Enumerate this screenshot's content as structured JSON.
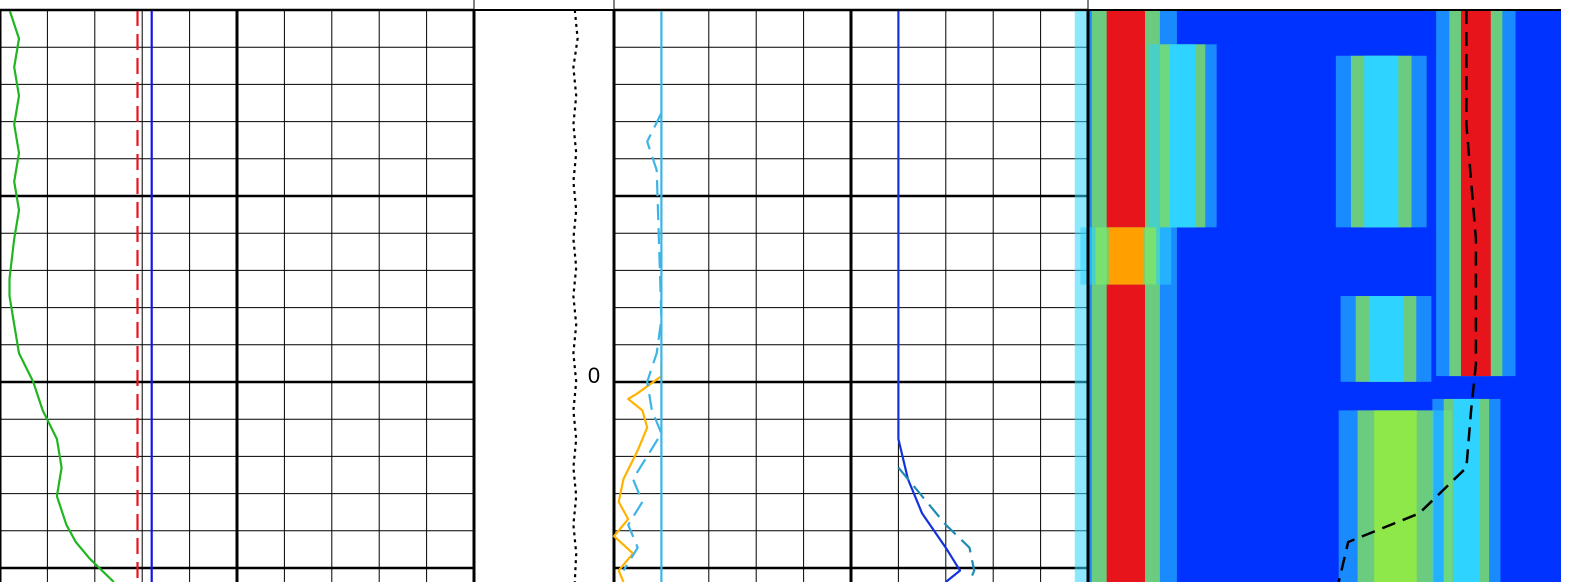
{
  "depth_track": {
    "label": "0"
  },
  "colors": {
    "grid_fine": "#000000",
    "gr_curve": "#22b522",
    "res_red_dashed": "#e8141c",
    "res_blue": "#1414e6",
    "caliper_dotted": "#000000",
    "orange_curve": "#ffb300",
    "cyan_curve": "#3cb4e6",
    "blue_curve": "#1432dc",
    "teal_dashed": "#1e8cb4",
    "heatmap_background": "#0033ff",
    "heatmap_trace_dashed": "#000000"
  },
  "chart_data": {
    "type": "line",
    "tracks": [
      {
        "name": "",
        "grid": true,
        "series": [
          {
            "name": "",
            "style": "solid",
            "color": "#22b522",
            "points": [
              [
                0.02,
                0
              ],
              [
                0.04,
                0.05
              ],
              [
                0.03,
                0.1
              ],
              [
                0.04,
                0.15
              ],
              [
                0.03,
                0.2
              ],
              [
                0.04,
                0.25
              ],
              [
                0.03,
                0.3
              ],
              [
                0.04,
                0.35
              ],
              [
                0.03,
                0.4
              ],
              [
                0.02,
                0.47
              ],
              [
                0.02,
                0.5
              ],
              [
                0.03,
                0.55
              ],
              [
                0.04,
                0.6
              ],
              [
                0.07,
                0.65
              ],
              [
                0.09,
                0.7
              ],
              [
                0.12,
                0.75
              ],
              [
                0.13,
                0.8
              ],
              [
                0.12,
                0.85
              ],
              [
                0.14,
                0.9
              ],
              [
                0.16,
                0.93
              ],
              [
                0.19,
                0.96
              ],
              [
                0.24,
                1.0
              ]
            ]
          },
          {
            "name": "",
            "style": "dashed",
            "color": "#e8141c",
            "points": [
              [
                0.29,
                0
              ],
              [
                0.29,
                0.2
              ],
              [
                0.29,
                0.4
              ],
              [
                0.29,
                0.6
              ],
              [
                0.29,
                0.8
              ],
              [
                0.29,
                1.0
              ]
            ]
          },
          {
            "name": "",
            "style": "solid",
            "color": "#1414e6",
            "points": [
              [
                0.32,
                0
              ],
              [
                0.32,
                0.25
              ],
              [
                0.32,
                0.5
              ],
              [
                0.32,
                0.75
              ],
              [
                0.32,
                1.0
              ]
            ]
          }
        ]
      },
      {
        "name": "",
        "grid": false,
        "series": [
          {
            "name": "",
            "style": "dotted",
            "color": "#000000",
            "points": [
              [
                0.72,
                0
              ],
              [
                0.74,
                0.05
              ],
              [
                0.71,
                0.1
              ],
              [
                0.73,
                0.15
              ],
              [
                0.71,
                0.2
              ],
              [
                0.73,
                0.25
              ],
              [
                0.71,
                0.3
              ],
              [
                0.73,
                0.35
              ],
              [
                0.71,
                0.4
              ],
              [
                0.73,
                0.45
              ],
              [
                0.71,
                0.5
              ],
              [
                0.73,
                0.55
              ],
              [
                0.71,
                0.6
              ],
              [
                0.73,
                0.65
              ],
              [
                0.71,
                0.7
              ],
              [
                0.73,
                0.75
              ],
              [
                0.71,
                0.8
              ],
              [
                0.73,
                0.85
              ],
              [
                0.71,
                0.9
              ],
              [
                0.73,
                0.95
              ],
              [
                0.72,
                1.0
              ]
            ]
          }
        ]
      },
      {
        "name": "",
        "grid": true,
        "series": [
          {
            "name": "",
            "style": "solid",
            "color": "#ffb300",
            "points": [
              [
                0.1,
                0.62
              ],
              [
                0.1,
                0.64
              ],
              [
                0.05,
                0.67
              ],
              [
                0.03,
                0.68
              ],
              [
                0.06,
                0.7
              ],
              [
                0.07,
                0.73
              ],
              [
                0.05,
                0.77
              ],
              [
                0.02,
                0.82
              ],
              [
                0.01,
                0.86
              ],
              [
                0.03,
                0.89
              ],
              [
                0.0,
                0.92
              ],
              [
                0.04,
                0.95
              ],
              [
                0.01,
                0.98
              ],
              [
                0.02,
                1.0
              ]
            ]
          },
          {
            "name": "",
            "style": "dashed",
            "color": "#3cb4e6",
            "points": [
              [
                0.1,
                0.18
              ],
              [
                0.07,
                0.23
              ],
              [
                0.09,
                0.28
              ],
              [
                0.1,
                0.54
              ],
              [
                0.09,
                0.6
              ],
              [
                0.07,
                0.65
              ],
              [
                0.08,
                0.7
              ],
              [
                0.1,
                0.74
              ],
              [
                0.07,
                0.78
              ],
              [
                0.04,
                0.82
              ],
              [
                0.06,
                0.86
              ],
              [
                0.03,
                0.9
              ],
              [
                0.05,
                0.94
              ],
              [
                0.02,
                0.98
              ]
            ]
          },
          {
            "name": "",
            "style": "solid",
            "color": "#3cb4e6",
            "points": [
              [
                0.1,
                0
              ],
              [
                0.1,
                0.2
              ],
              [
                0.1,
                0.4
              ],
              [
                0.1,
                0.6
              ],
              [
                0.1,
                0.8
              ],
              [
                0.1,
                1.0
              ]
            ]
          },
          {
            "name": "",
            "style": "solid",
            "color": "#1432dc",
            "points": [
              [
                0.6,
                0
              ],
              [
                0.6,
                0.2
              ],
              [
                0.6,
                0.4
              ],
              [
                0.6,
                0.6
              ],
              [
                0.6,
                0.75
              ],
              [
                0.62,
                0.82
              ],
              [
                0.65,
                0.88
              ],
              [
                0.7,
                0.94
              ],
              [
                0.73,
                0.98
              ],
              [
                0.7,
                1.0
              ]
            ]
          },
          {
            "name": "",
            "style": "dashed",
            "color": "#1e8cb4",
            "points": [
              [
                0.6,
                0.8
              ],
              [
                0.65,
                0.85
              ],
              [
                0.7,
                0.9
              ],
              [
                0.75,
                0.94
              ],
              [
                0.76,
                0.98
              ],
              [
                0.75,
                1.0
              ]
            ]
          }
        ]
      },
      {
        "name": "",
        "type": "heatmap",
        "grid": false,
        "bands": [
          {
            "center": 0.08,
            "width": 0.09,
            "from": 0.0,
            "to": 1.0,
            "color": "#e8141c"
          },
          {
            "center": 0.2,
            "width": 0.06,
            "from": 0.06,
            "to": 0.38,
            "color": "#2ed3ff"
          },
          {
            "center": 0.62,
            "width": 0.08,
            "from": 0.08,
            "to": 0.38,
            "color": "#2ed3ff"
          },
          {
            "center": 0.63,
            "width": 0.08,
            "from": 0.5,
            "to": 0.65,
            "color": "#2ed3ff"
          },
          {
            "center": 0.65,
            "width": 0.1,
            "from": 0.7,
            "to": 1.0,
            "color": "#8ee84a"
          },
          {
            "center": 0.82,
            "width": 0.07,
            "from": 0.0,
            "to": 0.64,
            "color": "#e8141c"
          },
          {
            "center": 0.8,
            "width": 0.06,
            "from": 0.68,
            "to": 1.0,
            "color": "#2ed3ff"
          },
          {
            "center": 0.08,
            "width": 0.08,
            "from": 0.38,
            "to": 0.48,
            "color": "#ff9f00"
          }
        ],
        "trace": {
          "name": "",
          "style": "dashed",
          "color": "#000000",
          "points": [
            [
              0.8,
              0
            ],
            [
              0.8,
              0.2
            ],
            [
              0.82,
              0.4
            ],
            [
              0.82,
              0.55
            ],
            [
              0.82,
              0.62
            ],
            [
              0.81,
              0.7
            ],
            [
              0.8,
              0.8
            ],
            [
              0.7,
              0.88
            ],
            [
              0.55,
              0.93
            ],
            [
              0.53,
              1.0
            ]
          ]
        }
      }
    ]
  }
}
